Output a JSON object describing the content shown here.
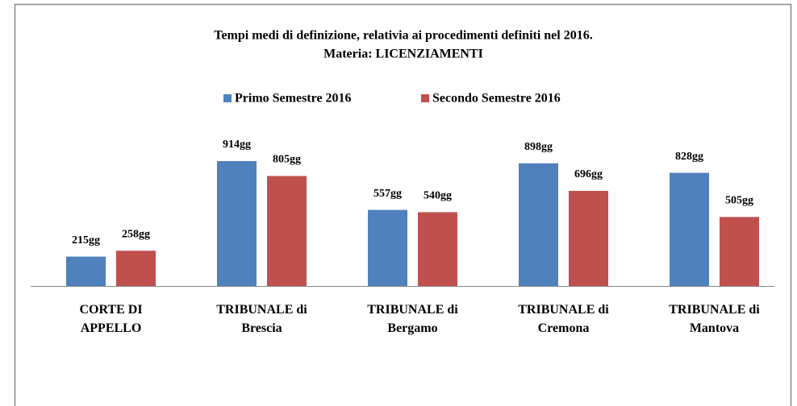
{
  "chart_data": {
    "type": "bar",
    "title": "Tempi medi di definizione, relativia ai procedimenti definiti nel 2016.",
    "subtitle": "Materia: LICENZIAMENTI",
    "categories": [
      "CORTE DI APPELLO",
      "TRIBUNALE di Brescia",
      "TRIBUNALE di Bergamo",
      "TRIBUNALE di Cremona",
      "TRIBUNALE di Mantova"
    ],
    "series": [
      {
        "name": "Primo Semestre 2016",
        "color": "#4f81bd",
        "values": [
          215,
          914,
          557,
          898,
          828
        ],
        "value_labels": [
          "215gg",
          "914gg",
          "557gg",
          "898gg",
          "828gg"
        ]
      },
      {
        "name": "Secondo Semestre 2016",
        "color": "#c0504d",
        "values": [
          258,
          805,
          540,
          696,
          505
        ],
        "value_labels": [
          "258gg",
          "805gg",
          "540gg",
          "696gg",
          "505gg"
        ]
      }
    ],
    "ylim": [
      0,
      1000
    ],
    "legend": "top"
  }
}
